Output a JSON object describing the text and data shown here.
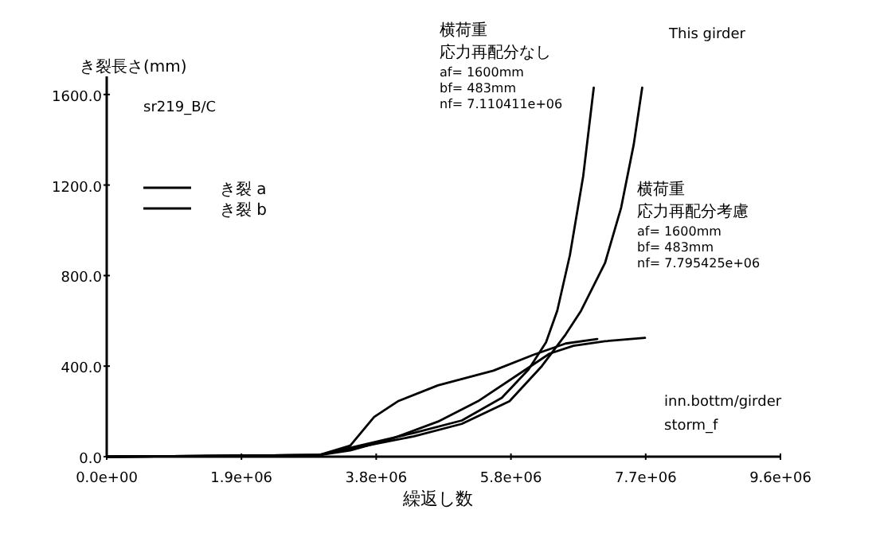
{
  "chart_data": {
    "type": "line",
    "xlabel": "繰返し数",
    "ylabel": "き裂長さ(mm)",
    "xlim": [
      0,
      9600000
    ],
    "ylim": [
      0,
      1680
    ],
    "xticks": [
      {
        "value": 0,
        "label": "0.0e+00"
      },
      {
        "value": 1920000,
        "label": "1.9e+06"
      },
      {
        "value": 3840000,
        "label": "3.8e+06"
      },
      {
        "value": 5760000,
        "label": "5.8e+06"
      },
      {
        "value": 7680000,
        "label": "7.7e+06"
      },
      {
        "value": 9600000,
        "label": "9.6e+06"
      }
    ],
    "yticks": [
      {
        "value": 0,
        "label": "0.0"
      },
      {
        "value": 400,
        "label": "400.0"
      },
      {
        "value": 800,
        "label": "800.0"
      },
      {
        "value": 1200,
        "label": "1200.0"
      },
      {
        "value": 1600,
        "label": "1600.0"
      }
    ],
    "grid": false,
    "legend": "top left",
    "line_style": "solid",
    "series": [
      {
        "name": "き裂 a",
        "color": "#000000",
        "x": [
          0,
          3020000,
          3700000,
          4380000,
          5060000,
          5630000,
          6010000,
          6260000,
          6420000,
          6600000,
          6790000,
          6940000
        ],
        "values": [
          0,
          7,
          56,
          105,
          160,
          260,
          385,
          505,
          645,
          890,
          1240,
          1630
        ]
      },
      {
        "name": "き裂 b",
        "color": "#000000",
        "x": [
          0,
          3020000,
          3470000,
          3810000,
          4150000,
          4720000,
          5510000,
          6080000,
          6540000,
          6990000
        ],
        "values": [
          0,
          7,
          49,
          175,
          245,
          315,
          380,
          450,
          500,
          520
        ]
      },
      {
        "color": "#000000",
        "x": [
          0,
          3020000,
          3700000,
          4380000,
          5060000,
          5740000,
          6200000,
          6540000,
          6760000,
          7100000,
          7330000,
          7510000,
          7630000
        ],
        "values": [
          0,
          7,
          49,
          90,
          145,
          245,
          400,
          540,
          645,
          855,
          1100,
          1380,
          1630
        ]
      },
      {
        "color": "#000000",
        "x": [
          0,
          3020000,
          3470000,
          4040000,
          4720000,
          5290000,
          5970000,
          6310000,
          6650000,
          7100000,
          7670000
        ],
        "values": [
          0,
          7,
          28,
          77,
          155,
          245,
          385,
          455,
          490,
          510,
          525
        ]
      }
    ],
    "annotations": [
      "sr219_B/C",
      "This girder",
      "横荷重",
      "応力再配分なし",
      "af=  1600mm",
      "bf=   483mm",
      "nf= 7.110411e+06",
      "横荷重",
      "応力再配分考慮",
      "af=  1600mm",
      "bf=   483mm",
      "nf= 7.795425e+06",
      "inn.bottm/girder",
      "storm_f"
    ]
  }
}
